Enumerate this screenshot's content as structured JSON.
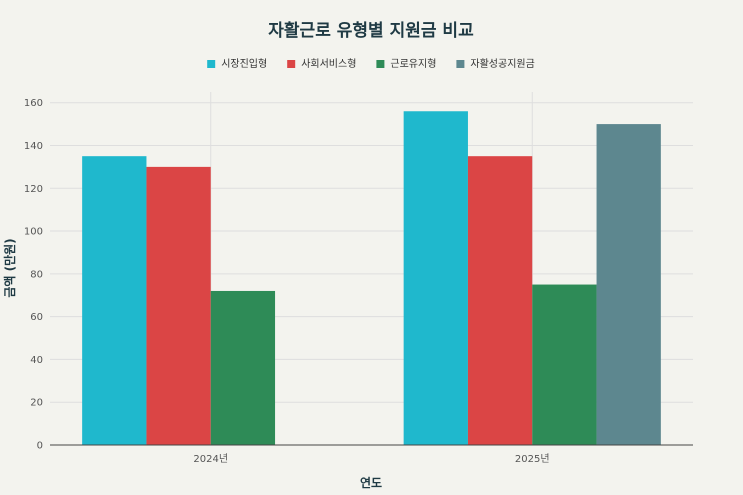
{
  "chart_data": {
    "type": "bar",
    "title": "자활근로 유형별 지원금 비교",
    "xlabel": "연도",
    "ylabel": "금액 (만원)",
    "categories": [
      "2024년",
      "2025년"
    ],
    "ylim": [
      0,
      165
    ],
    "yticks": [
      0,
      20,
      40,
      60,
      80,
      100,
      120,
      140,
      160
    ],
    "grid": true,
    "legend_position": "top-center",
    "series": [
      {
        "name": "시장진입형",
        "color": "#1fb8cd",
        "values": [
          135,
          156
        ]
      },
      {
        "name": "사회서비스형",
        "color": "#db4545",
        "values": [
          130,
          135
        ]
      },
      {
        "name": "근로유지형",
        "color": "#2e8b57",
        "values": [
          72,
          75
        ]
      },
      {
        "name": "자활성공지원금",
        "color": "#5d878f",
        "values": [
          null,
          150
        ]
      }
    ]
  }
}
